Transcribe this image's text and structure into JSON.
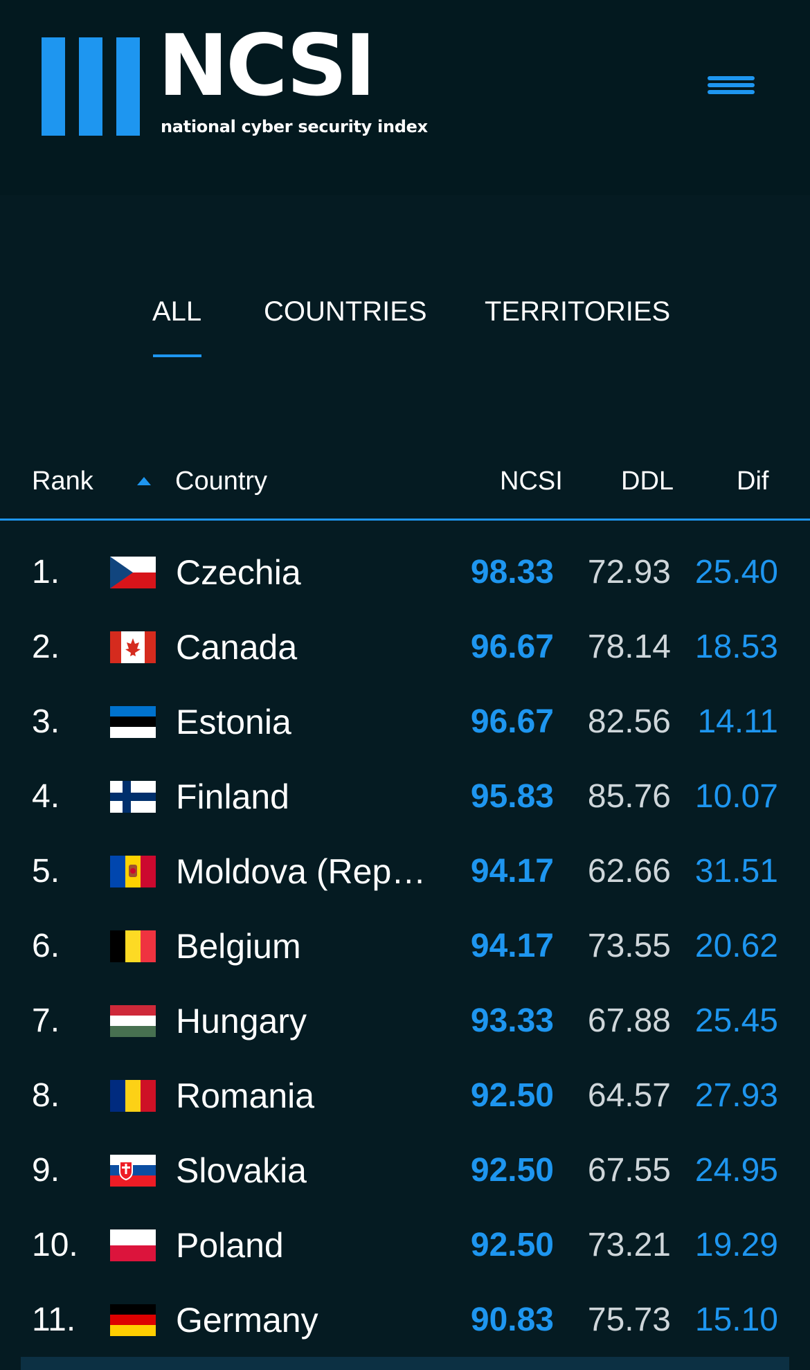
{
  "header": {
    "logo_word": "NCSI",
    "logo_tagline": "national cyber security index",
    "accent_color": "#1e96f0",
    "menu_icon": "hamburger-menu-icon"
  },
  "tabs": [
    {
      "label": "ALL",
      "active": true
    },
    {
      "label": "COUNTRIES",
      "active": false
    },
    {
      "label": "TERRITORIES",
      "active": false
    }
  ],
  "table": {
    "columns": {
      "rank": "Rank",
      "country": "Country",
      "ncsi": "NCSI",
      "ddl": "DDL",
      "dif": "Dif"
    },
    "sort": {
      "column": "rank",
      "direction": "ascending"
    },
    "rows": [
      {
        "rank": "1.",
        "flag": "czechia-flag",
        "country": "Czechia",
        "ncsi": "98.33",
        "ddl": "72.93",
        "dif": "25.40"
      },
      {
        "rank": "2.",
        "flag": "canada-flag",
        "country": "Canada",
        "ncsi": "96.67",
        "ddl": "78.14",
        "dif": "18.53"
      },
      {
        "rank": "3.",
        "flag": "estonia-flag",
        "country": "Estonia",
        "ncsi": "96.67",
        "ddl": "82.56",
        "dif": "14.11"
      },
      {
        "rank": "4.",
        "flag": "finland-flag",
        "country": "Finland",
        "ncsi": "95.83",
        "ddl": "85.76",
        "dif": "10.07"
      },
      {
        "rank": "5.",
        "flag": "moldova-flag",
        "country": "Moldova (Repu…",
        "ncsi": "94.17",
        "ddl": "62.66",
        "dif": "31.51"
      },
      {
        "rank": "6.",
        "flag": "belgium-flag",
        "country": "Belgium",
        "ncsi": "94.17",
        "ddl": "73.55",
        "dif": "20.62"
      },
      {
        "rank": "7.",
        "flag": "hungary-flag",
        "country": "Hungary",
        "ncsi": "93.33",
        "ddl": "67.88",
        "dif": "25.45"
      },
      {
        "rank": "8.",
        "flag": "romania-flag",
        "country": "Romania",
        "ncsi": "92.50",
        "ddl": "64.57",
        "dif": "27.93"
      },
      {
        "rank": "9.",
        "flag": "slovakia-flag",
        "country": "Slovakia",
        "ncsi": "92.50",
        "ddl": "67.55",
        "dif": "24.95"
      },
      {
        "rank": "10.",
        "flag": "poland-flag",
        "country": "Poland",
        "ncsi": "92.50",
        "ddl": "73.21",
        "dif": "19.29"
      },
      {
        "rank": "11.",
        "flag": "germany-flag",
        "country": "Germany",
        "ncsi": "90.83",
        "ddl": "75.73",
        "dif": "15.10"
      }
    ]
  }
}
